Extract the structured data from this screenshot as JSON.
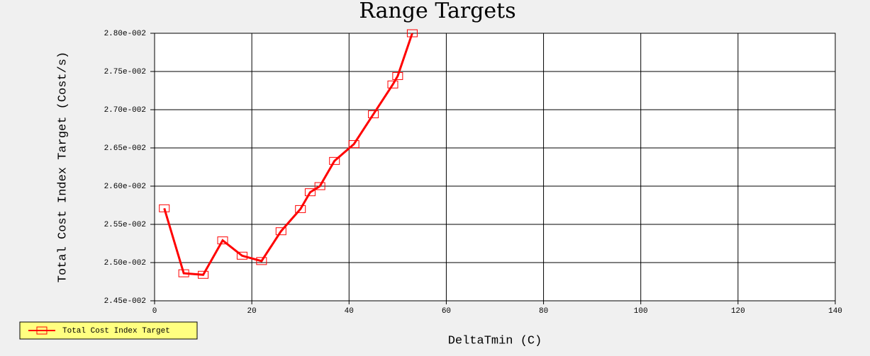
{
  "chart_data": {
    "type": "line",
    "title": "Range Targets",
    "x_label": "DeltaTmin (C)",
    "y_label": "Total Cost Index Target (Cost/s)",
    "x": [
      2,
      6,
      10,
      14,
      18,
      22,
      26,
      30,
      32,
      34,
      37,
      41,
      45,
      49,
      50,
      53
    ],
    "series": [
      {
        "name": "Total Cost Index Target",
        "color": "#ff0000",
        "values": [
          0.02571,
          0.02486,
          0.02484,
          0.02529,
          0.02509,
          0.02502,
          0.02541,
          0.0257,
          0.02592,
          0.026,
          0.02633,
          0.02655,
          0.02694,
          0.02733,
          0.02744,
          0.028
        ]
      }
    ],
    "xlim": [
      0,
      140
    ],
    "xticks": [
      0,
      20,
      40,
      60,
      80,
      100,
      120,
      140
    ],
    "ylim": [
      0.0245,
      0.028
    ],
    "yticks": [
      {
        "value": 0.0245,
        "label": "2.45e-002"
      },
      {
        "value": 0.025,
        "label": "2.50e-002"
      },
      {
        "value": 0.0255,
        "label": "2.55e-002"
      },
      {
        "value": 0.026,
        "label": "2.60e-002"
      },
      {
        "value": 0.0265,
        "label": "2.65e-002"
      },
      {
        "value": 0.027,
        "label": "2.70e-002"
      },
      {
        "value": 0.0275,
        "label": "2.75e-002"
      },
      {
        "value": 0.028,
        "label": "2.80e-002"
      }
    ],
    "grid": true,
    "legend": "bottom-left"
  }
}
